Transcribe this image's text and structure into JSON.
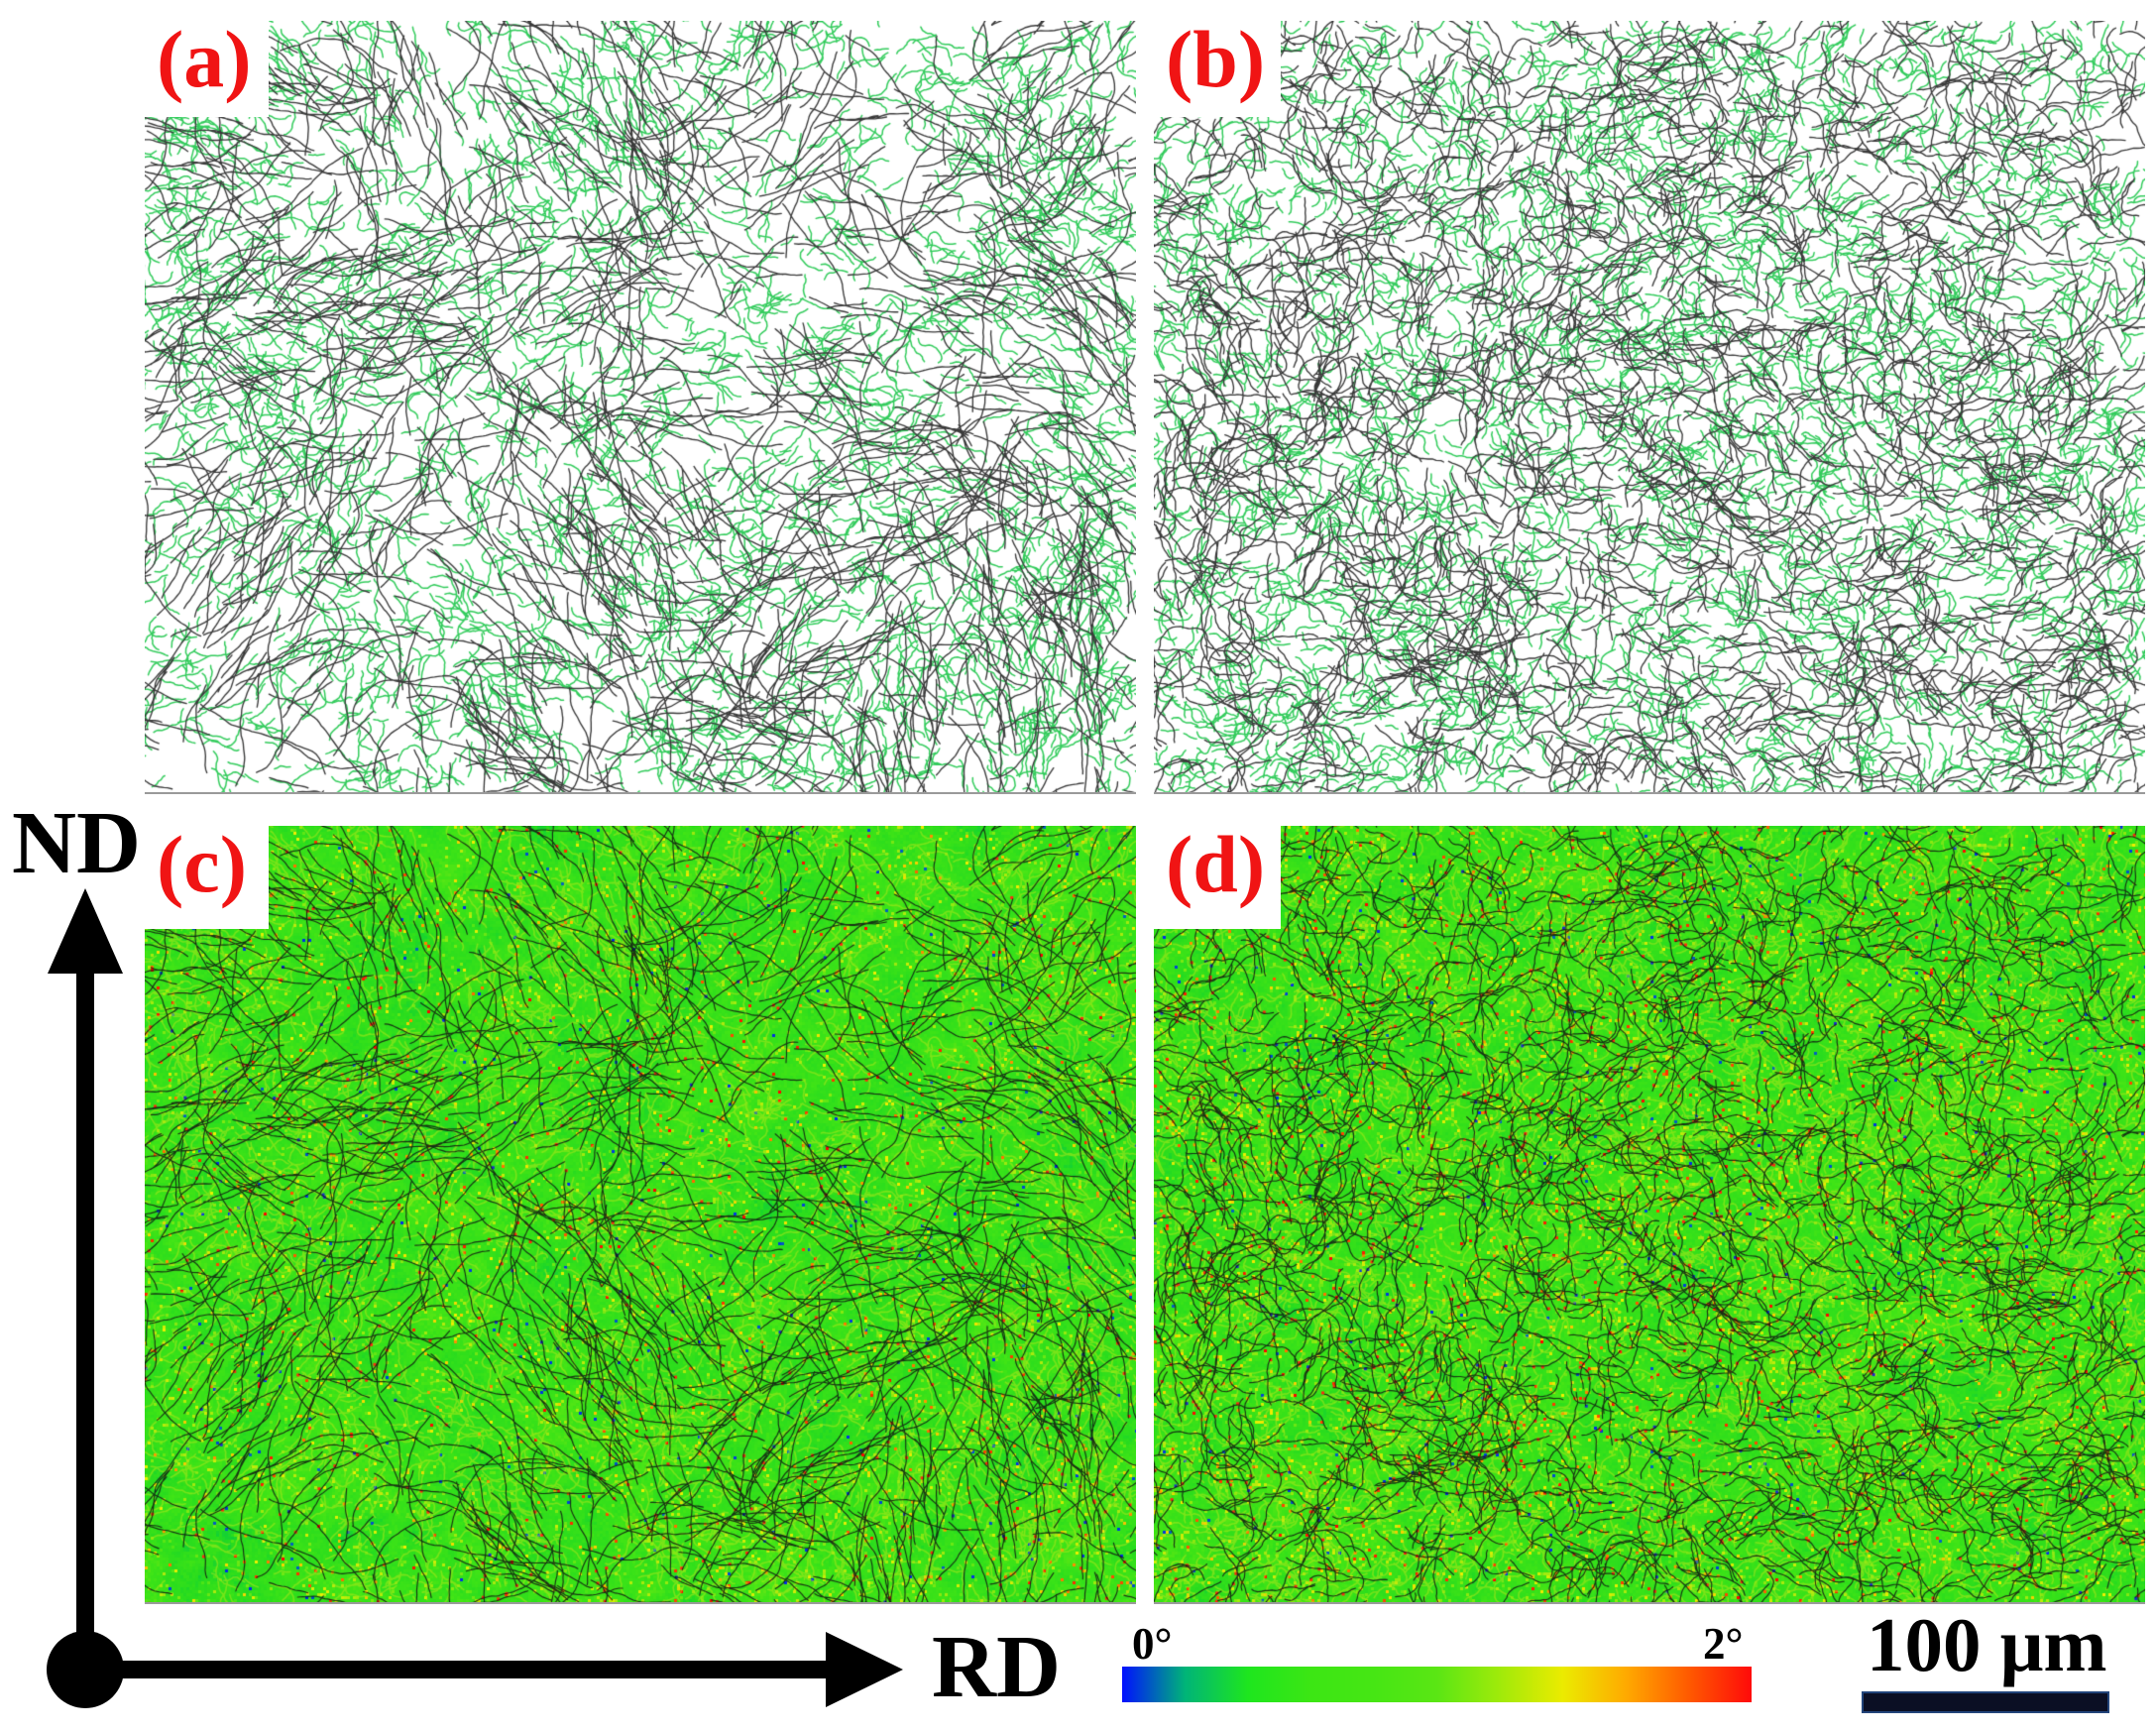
{
  "panels": [
    {
      "label": "(a)"
    },
    {
      "label": "(b)"
    },
    {
      "label": "(c)"
    },
    {
      "label": "(d)"
    }
  ],
  "axes": {
    "vertical_label": "ND",
    "horizontal_label": "RD"
  },
  "colorbar": {
    "min_label": "0°",
    "max_label": "2°",
    "colors": [
      "#0010ff",
      "#00b478",
      "#1ee61e",
      "#3ce614",
      "#46e614",
      "#5ae614",
      "#a0ea0a",
      "#ebeb00",
      "#ffaa00",
      "#ff5a00",
      "#ff0a0a"
    ]
  },
  "scale_bar": {
    "label": "100 μm"
  },
  "colors": {
    "panel_label": "#f01414",
    "low_angle_boundary": "#33cc5c",
    "high_angle_boundary": "#3a3a3a",
    "kam_boundary": "#121a12",
    "axes": "#000000"
  }
}
